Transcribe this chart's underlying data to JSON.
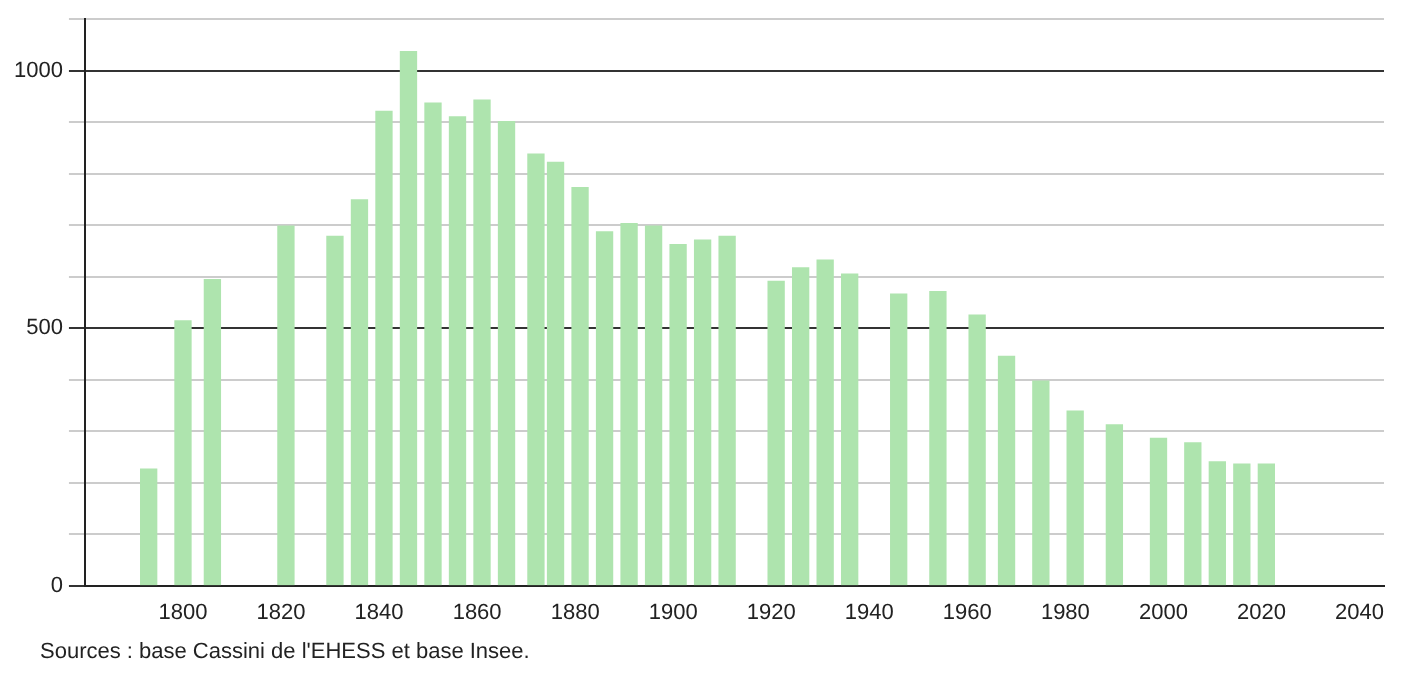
{
  "chart_data": {
    "type": "bar",
    "x": [
      1793,
      1800,
      1806,
      1821,
      1831,
      1836,
      1841,
      1846,
      1851,
      1856,
      1861,
      1866,
      1872,
      1876,
      1881,
      1886,
      1891,
      1896,
      1901,
      1906,
      1911,
      1921,
      1926,
      1931,
      1936,
      1946,
      1954,
      1962,
      1968,
      1975,
      1982,
      1990,
      1999,
      2006,
      2011,
      2016,
      2021
    ],
    "values": [
      226,
      514,
      594,
      698,
      678,
      749,
      921,
      1037,
      937,
      910,
      943,
      901,
      838,
      822,
      773,
      687,
      703,
      698,
      662,
      671,
      678,
      591,
      617,
      632,
      605,
      566,
      571,
      525,
      445,
      397,
      339,
      312,
      286,
      277,
      240,
      236,
      236
    ],
    "color": "#aee4ae",
    "xlim": [
      1780,
      2045
    ],
    "xticks": [
      1800,
      1820,
      1840,
      1860,
      1880,
      1900,
      1920,
      1940,
      1960,
      1980,
      2000,
      2020,
      2040
    ],
    "ylim": [
      0,
      1100
    ],
    "yticks": [
      0,
      {
        "value": 100,
        "label": null
      },
      {
        "value": 200,
        "label": null
      },
      {
        "value": 300,
        "label": null
      },
      {
        "value": 400,
        "label": null
      },
      500,
      {
        "value": 600,
        "label": null
      },
      {
        "value": 700,
        "label": null
      },
      {
        "value": 800,
        "label": null
      },
      {
        "value": 900,
        "label": null
      },
      1000,
      {
        "value": 1100,
        "label": null
      }
    ],
    "grid": "y",
    "legend": false,
    "annotations": [
      "Sources : base Cassini de l'EHESS et base Insee."
    ]
  }
}
